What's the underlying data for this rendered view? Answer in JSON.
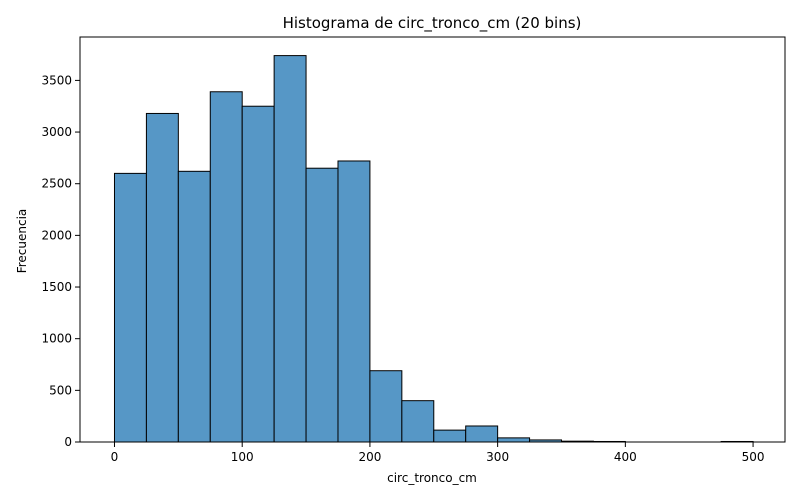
{
  "chart_data": {
    "type": "bar",
    "title": "Histograma de circ_tronco_cm (20 bins)",
    "xlabel": "circ_tronco_cm",
    "ylabel": "Frecuencia",
    "xlim": [
      -27,
      525
    ],
    "ylim": [
      0,
      3920
    ],
    "xticks": [
      0,
      100,
      200,
      300,
      400,
      500
    ],
    "yticks": [
      0,
      500,
      1000,
      1500,
      2000,
      2500,
      3000,
      3500
    ],
    "bin_width": 25,
    "bins": [
      {
        "x0": 0,
        "x1": 25,
        "count": 2600
      },
      {
        "x0": 25,
        "x1": 50,
        "count": 3180
      },
      {
        "x0": 50,
        "x1": 75,
        "count": 2620
      },
      {
        "x0": 75,
        "x1": 100,
        "count": 3390
      },
      {
        "x0": 100,
        "x1": 125,
        "count": 3250
      },
      {
        "x0": 125,
        "x1": 150,
        "count": 3740
      },
      {
        "x0": 150,
        "x1": 175,
        "count": 2650
      },
      {
        "x0": 175,
        "x1": 200,
        "count": 2720
      },
      {
        "x0": 200,
        "x1": 225,
        "count": 690
      },
      {
        "x0": 225,
        "x1": 250,
        "count": 400
      },
      {
        "x0": 250,
        "x1": 275,
        "count": 115
      },
      {
        "x0": 275,
        "x1": 300,
        "count": 155
      },
      {
        "x0": 300,
        "x1": 325,
        "count": 40
      },
      {
        "x0": 325,
        "x1": 350,
        "count": 20
      },
      {
        "x0": 350,
        "x1": 375,
        "count": 8
      },
      {
        "x0": 375,
        "x1": 400,
        "count": 5
      },
      {
        "x0": 400,
        "x1": 425,
        "count": 0
      },
      {
        "x0": 425,
        "x1": 450,
        "count": 0
      },
      {
        "x0": 450,
        "x1": 475,
        "count": 0
      },
      {
        "x0": 475,
        "x1": 500,
        "count": 5
      }
    ],
    "colors": {
      "bar": "#5697c6",
      "edge": "#000000"
    },
    "grid": false
  }
}
